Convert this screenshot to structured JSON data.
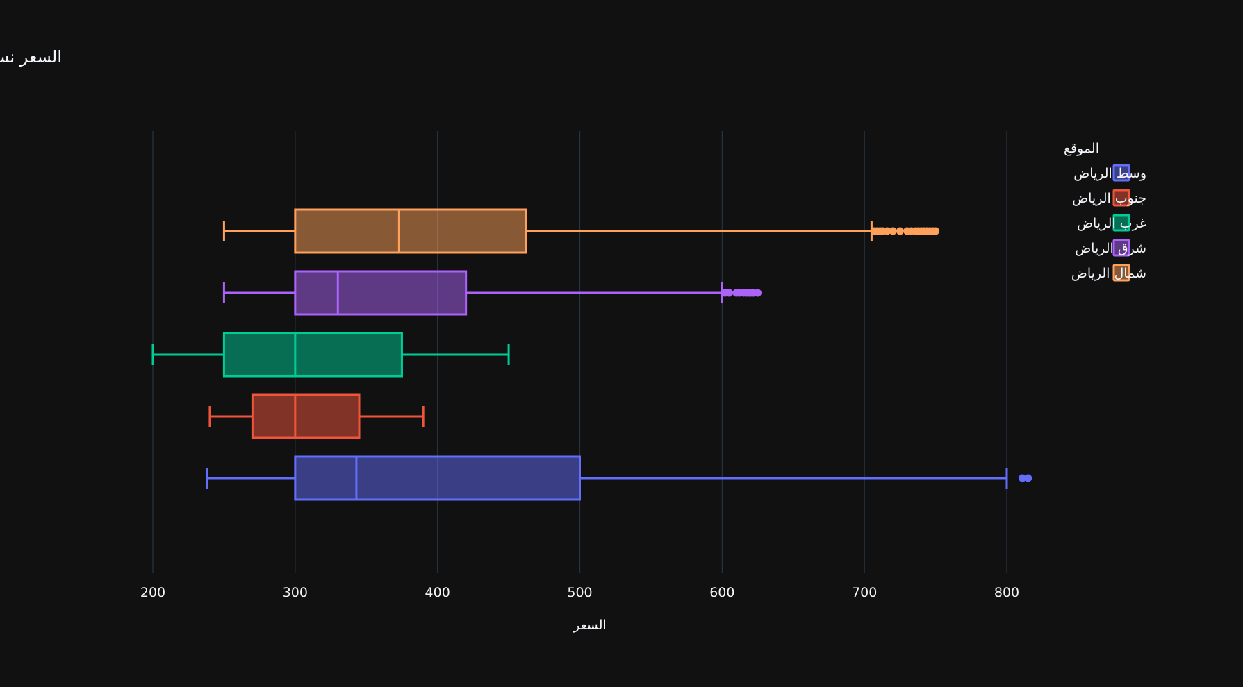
{
  "chart_data": {
    "type": "box",
    "orientation": "horizontal",
    "title": "السعر نسبة للموقع",
    "xlabel": "السعر",
    "xlim": [
      180,
      835
    ],
    "xticks": [
      200,
      300,
      400,
      500,
      600,
      700,
      800
    ],
    "legend": {
      "title": "الموقع",
      "placement": "top-right"
    },
    "series": [
      {
        "name": "وسط الرياض",
        "color": "#636efa",
        "min": 238,
        "q1": 300,
        "median": 343,
        "q3": 500,
        "max": 800,
        "outliers": [
          811,
          815
        ]
      },
      {
        "name": "جنوب الرياض",
        "color": "#ef553b",
        "min": 240,
        "q1": 270,
        "median": 300,
        "q3": 345,
        "max": 390,
        "outliers": []
      },
      {
        "name": "غرب الرياض",
        "color": "#00cc96",
        "min": 200,
        "q1": 250,
        "median": 300,
        "q3": 375,
        "max": 450,
        "outliers": []
      },
      {
        "name": "شرق الرياض",
        "color": "#ab63fa",
        "min": 250,
        "q1": 300,
        "median": 330,
        "q3": 420,
        "max": 600,
        "outliers": [
          602,
          605,
          610,
          612,
          615,
          617,
          619,
          620,
          622,
          625
        ]
      },
      {
        "name": "شمال الرياض",
        "color": "#ffa15a",
        "min": 250,
        "q1": 300,
        "median": 373,
        "q3": 462,
        "max": 705,
        "outliers": [
          707,
          709,
          711,
          713,
          716,
          720,
          725,
          730,
          733,
          736,
          738,
          740,
          742,
          744,
          746,
          748,
          750
        ]
      }
    ]
  }
}
